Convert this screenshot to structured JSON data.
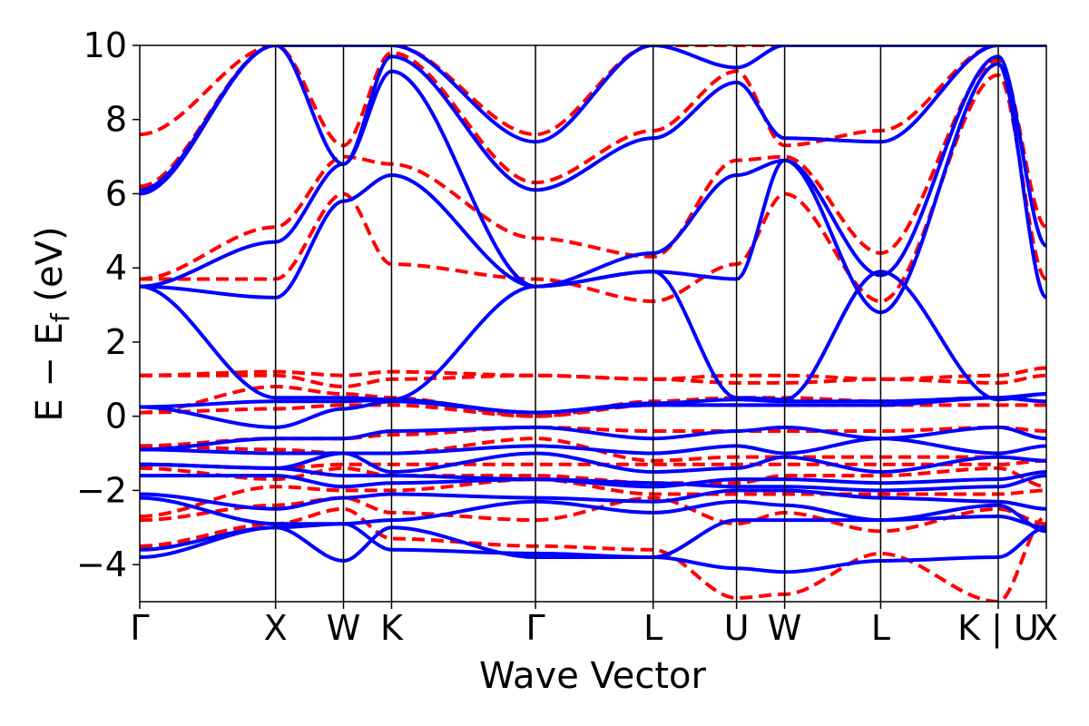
{
  "chart_data": {
    "type": "line",
    "title": "",
    "xlabel": "Wave Vector",
    "ylabel": "E − E_f (eV)",
    "ylabel_parts": {
      "main": "E − E",
      "subscript": "f",
      "unit": " (eV)"
    },
    "ylim": [
      -5,
      10
    ],
    "yticks": [
      -4,
      -2,
      0,
      2,
      4,
      6,
      8,
      10
    ],
    "ytick_labels": [
      "−4",
      "−2",
      "0",
      "2",
      "4",
      "6",
      "8",
      "10"
    ],
    "grid": false,
    "legend": "none",
    "high_symmetry_points": [
      {
        "label": "Γ",
        "k": 0.0
      },
      {
        "label": "X",
        "k": 1.0
      },
      {
        "label": "W",
        "k": 1.5
      },
      {
        "label": "K",
        "k": 1.854
      },
      {
        "label": "Γ",
        "k": 2.914
      },
      {
        "label": "L",
        "k": 3.78
      },
      {
        "label": "U",
        "k": 4.394
      },
      {
        "label": "W",
        "k": 4.748
      },
      {
        "label": "L",
        "k": 5.455
      },
      {
        "label": "K | U",
        "k": 6.321
      },
      {
        "label": "X",
        "k": 6.675
      }
    ],
    "xlim": [
      0,
      6.675
    ],
    "series": [
      {
        "style": "solid",
        "color": "#0000ff",
        "bands": [
          [
            -3.8,
            -3.0,
            -2.9,
            -3.6,
            -3.7,
            -3.8,
            -4.1,
            -4.2,
            -3.9,
            -3.8,
            -3.0
          ],
          [
            -3.6,
            -3.0,
            -3.9,
            -3.0,
            -3.8,
            -3.8,
            -2.8,
            -2.8,
            -2.8,
            -2.7,
            -3.0
          ],
          [
            -2.2,
            -2.9,
            -2.9,
            -2.8,
            -2.3,
            -2.6,
            -2.3,
            -2.4,
            -2.8,
            -2.4,
            -3.1
          ],
          [
            -2.1,
            -2.5,
            -2.2,
            -2.1,
            -2.2,
            -2.3,
            -2.0,
            -2.0,
            -2.2,
            -2.3,
            -2.5
          ],
          [
            -1.6,
            -1.6,
            -1.9,
            -1.8,
            -1.7,
            -1.8,
            -1.9,
            -1.9,
            -2.0,
            -1.9,
            -1.6
          ],
          [
            -1.3,
            -1.4,
            -1.6,
            -1.6,
            -1.7,
            -1.9,
            -1.7,
            -1.7,
            -1.8,
            -1.7,
            -1.5
          ],
          [
            -1.3,
            -1.4,
            -1.0,
            -1.5,
            -1.0,
            -1.5,
            -1.4,
            -1.1,
            -1.5,
            -1.1,
            -1.2
          ],
          [
            -0.9,
            -1.0,
            -1.0,
            -1.0,
            -0.8,
            -1.0,
            -0.8,
            -1.0,
            -0.6,
            -1.0,
            -0.8
          ],
          [
            -0.9,
            -0.6,
            -0.6,
            -0.4,
            -0.3,
            -0.6,
            -0.4,
            -0.3,
            -0.6,
            -0.3,
            -0.6
          ],
          [
            0.25,
            -0.3,
            0.2,
            0.4,
            0.1,
            0.3,
            0.3,
            0.3,
            0.3,
            0.5,
            0.4
          ],
          [
            0.25,
            0.4,
            0.4,
            0.45,
            0.1,
            0.35,
            0.45,
            0.4,
            0.4,
            0.5,
            0.6
          ],
          [
            3.5,
            0.5,
            0.5,
            0.45,
            3.5,
            3.9,
            0.5,
            0.45,
            3.9,
            0.45,
            0.6
          ],
          [
            3.5,
            3.2,
            5.8,
            6.5,
            3.5,
            3.9,
            3.7,
            6.9,
            2.8,
            9.5,
            3.2
          ],
          [
            3.5,
            4.7,
            6.8,
            9.3,
            3.5,
            4.4,
            6.5,
            6.9,
            3.8,
            9.7,
            4.6
          ],
          [
            6.0,
            10.0,
            6.8,
            9.7,
            6.1,
            7.5,
            9.0,
            7.5,
            7.4,
            10.0,
            10.0
          ],
          [
            6.1,
            10.0,
            10.0,
            10.0,
            7.4,
            10.0,
            9.4,
            10.0,
            10.0,
            10.0,
            10.0
          ]
        ]
      },
      {
        "style": "dashed",
        "color": "#ff0000",
        "bands": [
          [
            -3.5,
            -2.9,
            -2.5,
            -3.3,
            -3.5,
            -3.6,
            -4.9,
            -4.8,
            -3.7,
            -5.0,
            -2.7
          ],
          [
            -2.8,
            -2.4,
            -2.2,
            -2.6,
            -2.8,
            -2.2,
            -2.9,
            -2.6,
            -3.1,
            -2.5,
            -2.9
          ],
          [
            -2.7,
            -1.9,
            -2.0,
            -2.0,
            -1.7,
            -2.1,
            -2.1,
            -2.1,
            -2.1,
            -2.1,
            -2.0
          ],
          [
            -1.4,
            -1.7,
            -1.4,
            -1.6,
            -1.6,
            -1.8,
            -1.8,
            -1.6,
            -1.6,
            -1.4,
            -1.9
          ],
          [
            -1.3,
            -1.4,
            -1.3,
            -1.3,
            -1.3,
            -1.3,
            -1.3,
            -1.3,
            -1.3,
            -1.3,
            -1.2
          ],
          [
            -0.8,
            -0.9,
            -1.0,
            -1.0,
            -0.6,
            -1.2,
            -1.1,
            -1.1,
            -1.1,
            -1.1,
            -1.2
          ],
          [
            -0.8,
            -0.6,
            -0.6,
            -0.5,
            -0.3,
            -0.4,
            -0.4,
            -0.4,
            -0.4,
            -0.3,
            -0.4
          ],
          [
            0.1,
            0.2,
            0.3,
            0.3,
            0.0,
            0.3,
            0.3,
            0.3,
            0.3,
            0.3,
            0.3
          ],
          [
            0.1,
            0.8,
            0.6,
            0.5,
            0.0,
            0.4,
            0.5,
            0.5,
            0.4,
            0.5,
            0.4
          ],
          [
            1.1,
            1.1,
            0.8,
            1.0,
            1.1,
            1.0,
            0.9,
            0.9,
            1.0,
            0.9,
            1.1
          ],
          [
            1.1,
            1.2,
            1.1,
            1.2,
            1.1,
            1.0,
            1.1,
            1.1,
            1.0,
            1.1,
            1.3
          ],
          [
            3.7,
            3.7,
            6.0,
            4.1,
            3.7,
            3.1,
            4.1,
            6.0,
            3.1,
            9.2,
            3.7
          ],
          [
            3.7,
            5.1,
            7.0,
            6.8,
            4.8,
            4.3,
            6.9,
            7.0,
            4.4,
            9.6,
            5.1
          ],
          [
            6.2,
            10.0,
            7.3,
            9.8,
            6.3,
            7.7,
            9.3,
            7.3,
            7.7,
            10.0,
            10.0
          ],
          [
            7.6,
            10.0,
            10.0,
            10.0,
            7.6,
            10.0,
            10.0,
            10.0,
            10.0,
            10.0,
            10.0
          ]
        ]
      }
    ]
  }
}
